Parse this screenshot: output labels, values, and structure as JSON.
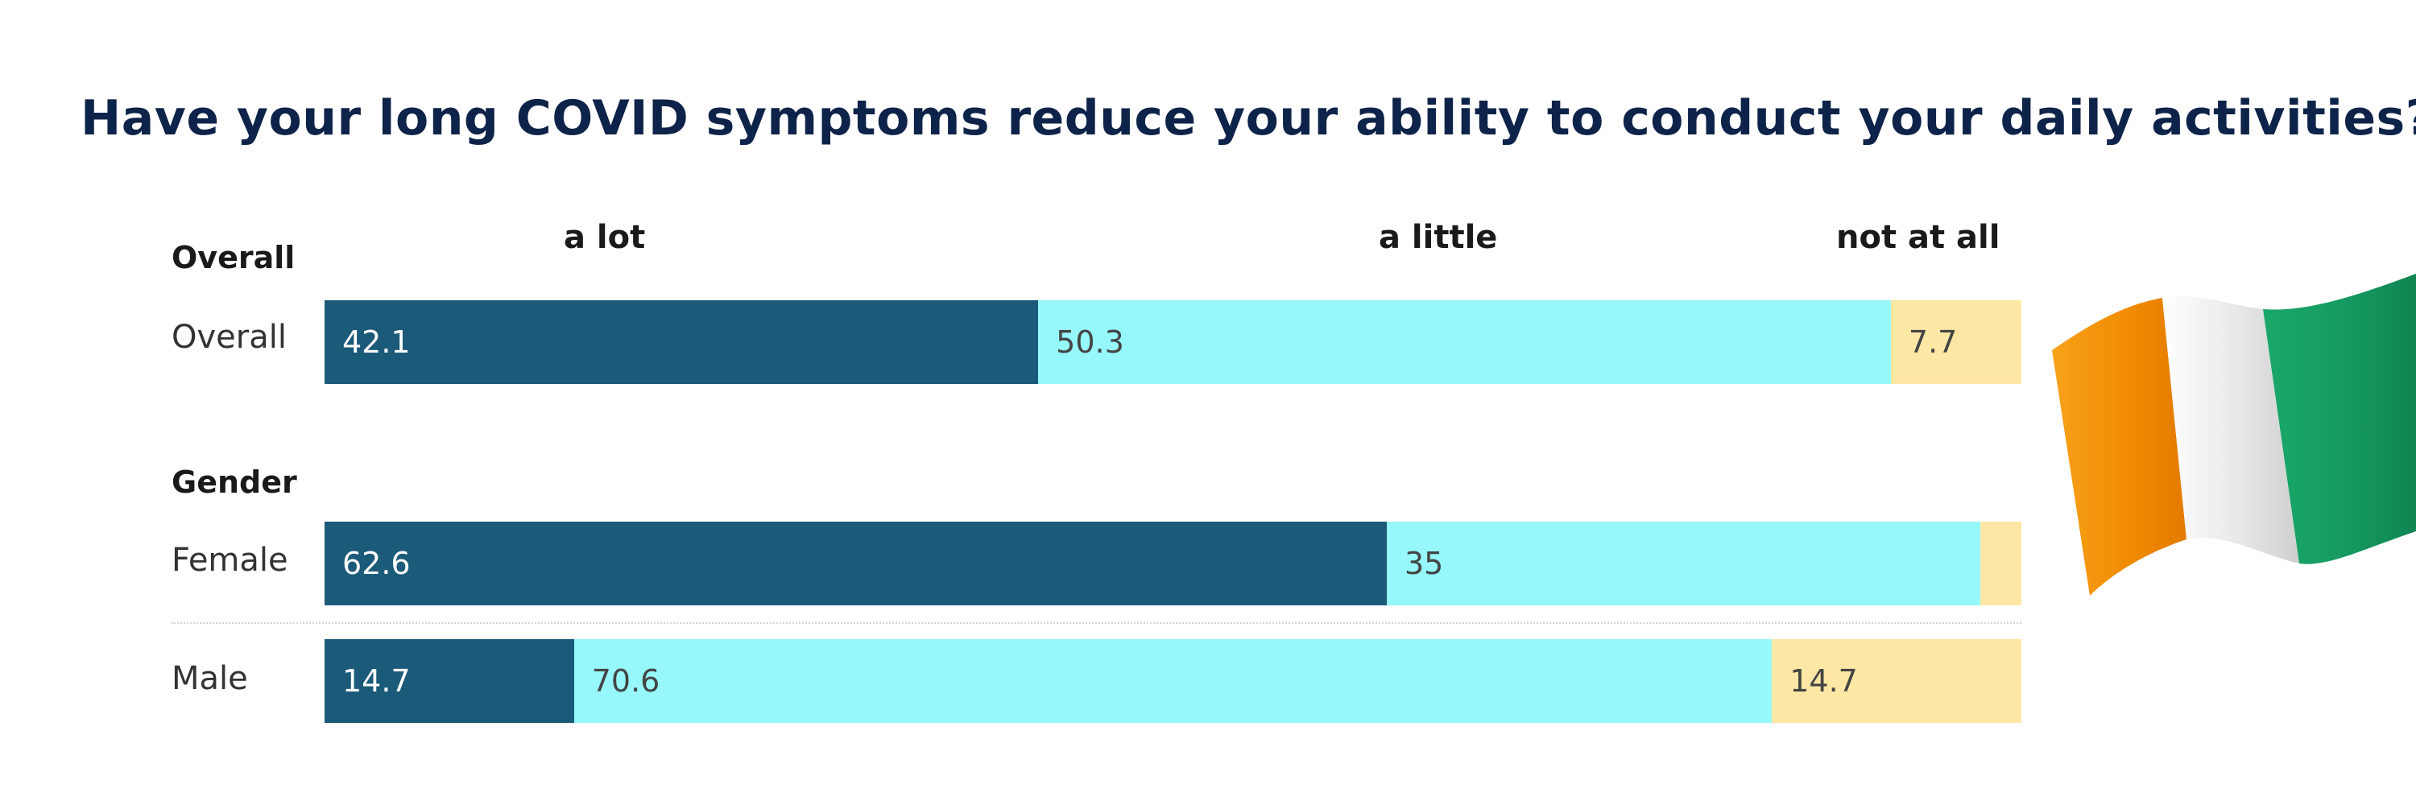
{
  "chart_data": {
    "type": "bar",
    "stacked": true,
    "orientation": "horizontal",
    "title": "Have your long COVID symptoms reduce your ability to conduct your daily activities?",
    "legend": [
      "a lot",
      "a little",
      "not at all"
    ],
    "legend_position": "top",
    "colors": {
      "a lot": "#1b5a78",
      "a little": "#96f8fb",
      "not at all": "#fde7a4"
    },
    "groups": [
      {
        "name": "Overall",
        "rows": [
          {
            "label": "Overall",
            "values": [
              42.1,
              50.3,
              7.7
            ],
            "labels": [
              "42.1",
              "50.3",
              "7.7"
            ]
          }
        ]
      },
      {
        "name": "Gender",
        "rows": [
          {
            "label": "Female",
            "values": [
              62.6,
              35,
              2.4
            ],
            "labels": [
              "62.6",
              "35",
              ""
            ]
          },
          {
            "label": "Male",
            "values": [
              14.7,
              70.6,
              14.7
            ],
            "labels": [
              "14.7",
              "70.6",
              "14.7"
            ]
          }
        ]
      }
    ],
    "xlim": [
      0,
      100
    ],
    "grid": false
  },
  "decoration": {
    "flag_icon": "irish-flag",
    "flag_colors": [
      "#f08a00",
      "#f2f2f2",
      "#169b62"
    ]
  }
}
